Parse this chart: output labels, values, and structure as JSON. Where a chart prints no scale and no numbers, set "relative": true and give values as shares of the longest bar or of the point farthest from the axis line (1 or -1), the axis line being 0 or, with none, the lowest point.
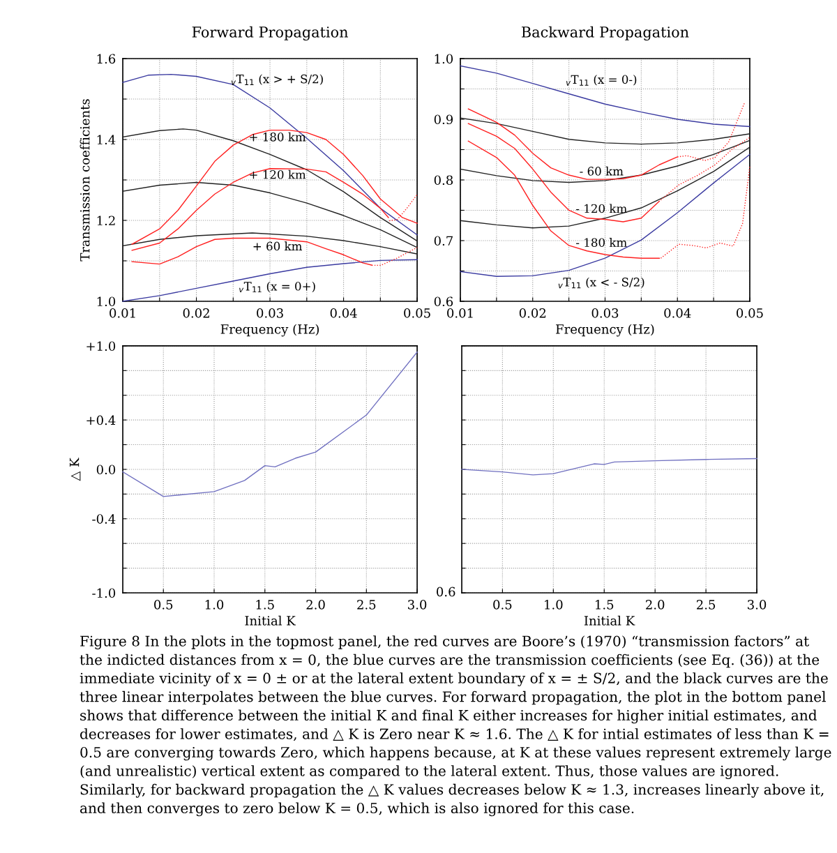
{
  "chart_data": [
    {
      "type": "line",
      "title": "Forward Propagation",
      "xlabel": "Frequency (Hz)",
      "ylabel": "Transmission coefficients",
      "xlim": [
        0.01,
        0.05
      ],
      "ylim": [
        1.0,
        1.6
      ],
      "xticks": [
        0.01,
        {
          "value": 0.015,
          "label": null
        },
        0.02,
        {
          "value": 0.025,
          "label": null
        },
        0.03,
        {
          "value": 0.035,
          "label": null
        },
        0.04,
        {
          "value": 0.045,
          "label": null
        },
        0.05
      ],
      "yticks": [
        {
          "value": 1.0,
          "label": "1.0"
        },
        {
          "value": 1.1,
          "label": null
        },
        1.2,
        {
          "value": 1.3,
          "label": null
        },
        1.4,
        {
          "value": 1.5,
          "label": null
        },
        1.6
      ],
      "grid": true,
      "line_style": "solid",
      "series": [
        {
          "color": "#3a3aa0",
          "x": [
            0.01,
            0.01345,
            0.0166,
            0.02,
            0.025,
            0.03,
            0.035,
            0.04,
            0.045,
            0.05
          ],
          "values": [
            1.541,
            1.559,
            1.561,
            1.556,
            1.536,
            1.478,
            1.403,
            1.323,
            1.23,
            1.164
          ]
        },
        {
          "color": "#222222",
          "x": [
            0.01,
            0.015,
            0.0182,
            0.02,
            0.025,
            0.03,
            0.035,
            0.04,
            0.045,
            0.05
          ],
          "values": [
            1.406,
            1.422,
            1.426,
            1.423,
            1.397,
            1.363,
            1.325,
            1.271,
            1.207,
            1.149
          ]
        },
        {
          "color": "#222222",
          "x": [
            0.01,
            0.015,
            0.02,
            0.025,
            0.03,
            0.035,
            0.04,
            0.045,
            0.05
          ],
          "values": [
            1.272,
            1.287,
            1.294,
            1.287,
            1.268,
            1.243,
            1.212,
            1.177,
            1.133
          ]
        },
        {
          "color": "#222222",
          "x": [
            0.01,
            0.015,
            0.02,
            0.0276,
            0.035,
            0.04,
            0.045,
            0.05
          ],
          "values": [
            1.137,
            1.153,
            1.162,
            1.169,
            1.161,
            1.15,
            1.135,
            1.117
          ]
        },
        {
          "color": "#3a3aa0",
          "x": [
            0.01,
            0.015,
            0.02,
            0.025,
            0.03,
            0.035,
            0.04,
            0.045,
            0.05
          ],
          "values": [
            1.0,
            1.014,
            1.032,
            1.05,
            1.068,
            1.084,
            1.093,
            1.101,
            1.103
          ]
        },
        {
          "color": "#ff2020",
          "x": [
            0.01125,
            0.015,
            0.0175,
            0.02,
            0.0225,
            0.025,
            0.0276,
            0.03,
            0.0326,
            0.035,
            0.0376,
            0.04,
            0.0426,
            0.045,
            0.048,
            0.05
          ],
          "values": [
            1.141,
            1.179,
            1.225,
            1.285,
            1.346,
            1.386,
            1.412,
            1.423,
            1.423,
            1.417,
            1.4,
            1.363,
            1.311,
            1.253,
            1.207,
            1.193
          ]
        },
        {
          "color": "#ff2020",
          "x": [
            0.01125,
            0.015,
            0.0175,
            0.02,
            0.0225,
            0.025,
            0.0276,
            0.03,
            0.035,
            0.0376,
            0.04,
            0.0426,
            0.045,
            0.0461
          ],
          "values": [
            1.126,
            1.144,
            1.179,
            1.225,
            1.265,
            1.294,
            1.317,
            1.328,
            1.327,
            1.32,
            1.294,
            1.265,
            1.23,
            1.207
          ]
        },
        {
          "color": "#ff2020",
          "line_style": "dotted",
          "x": [
            0.0462,
            0.0473,
            0.0486,
            0.05
          ],
          "values": [
            1.199,
            1.202,
            1.23,
            1.264
          ]
        },
        {
          "color": "#ff2020",
          "x": [
            0.01125,
            0.015,
            0.0175,
            0.02,
            0.0225,
            0.025,
            0.03,
            0.035,
            0.0376,
            0.04,
            0.0426,
            0.0439
          ],
          "values": [
            1.098,
            1.092,
            1.11,
            1.135,
            1.153,
            1.156,
            1.156,
            1.147,
            1.13,
            1.115,
            1.095,
            1.089
          ]
        },
        {
          "color": "#ff2020",
          "line_style": "dotted",
          "x": [
            0.0442,
            0.0451,
            0.0473,
            0.05
          ],
          "values": [
            1.089,
            1.089,
            1.107,
            1.133
          ]
        }
      ],
      "annotations": [
        "$_{v}$T$_{11}$ (x > + S/2)",
        "+ 180 km",
        "+ 120 km",
        "+ 60 km",
        "$_{v}$T$_{11}$ (x = 0+)"
      ]
    },
    {
      "type": "line",
      "title": "Backward Propagation",
      "xlabel": "Frequency (Hz)",
      "xlim": [
        0.01,
        0.05
      ],
      "ylim": [
        0.6,
        1.0
      ],
      "xticks": [
        0.01,
        {
          "value": 0.015,
          "label": null
        },
        0.02,
        {
          "value": 0.025,
          "label": null
        },
        0.03,
        {
          "value": 0.035,
          "label": null
        },
        0.04,
        {
          "value": 0.045,
          "label": null
        },
        0.05
      ],
      "yticks": [
        0.6,
        {
          "value": 0.65,
          "label": null
        },
        0.7,
        {
          "value": 0.75,
          "label": null
        },
        0.8,
        {
          "value": 0.85,
          "label": null
        },
        0.9,
        {
          "value": 0.95,
          "label": null
        },
        {
          "value": 1.0,
          "label": "1.0"
        }
      ],
      "grid": true,
      "line_style": "solid",
      "series": [
        {
          "color": "#3a3aa0",
          "x": [
            0.01,
            0.015,
            0.02,
            0.025,
            0.03,
            0.035,
            0.04,
            0.045,
            0.05
          ],
          "values": [
            0.988,
            0.976,
            0.959,
            0.942,
            0.925,
            0.912,
            0.9,
            0.892,
            0.888
          ]
        },
        {
          "color": "#222222",
          "x": [
            0.01,
            0.015,
            0.02,
            0.025,
            0.03,
            0.035,
            0.04,
            0.045,
            0.05
          ],
          "values": [
            0.902,
            0.893,
            0.88,
            0.867,
            0.861,
            0.859,
            0.861,
            0.867,
            0.876
          ]
        },
        {
          "color": "#222222",
          "x": [
            0.01,
            0.015,
            0.02,
            0.025,
            0.03,
            0.035,
            0.04,
            0.045,
            0.05
          ],
          "values": [
            0.818,
            0.807,
            0.799,
            0.796,
            0.799,
            0.808,
            0.823,
            0.842,
            0.865
          ]
        },
        {
          "color": "#222222",
          "x": [
            0.01,
            0.015,
            0.02,
            0.025,
            0.03,
            0.035,
            0.04,
            0.045,
            0.05
          ],
          "values": [
            0.733,
            0.726,
            0.721,
            0.724,
            0.737,
            0.754,
            0.782,
            0.814,
            0.854
          ]
        },
        {
          "color": "#3a3aa0",
          "x": [
            0.01,
            0.015,
            0.02,
            0.025,
            0.03,
            0.035,
            0.04,
            0.045,
            0.05
          ],
          "values": [
            0.649,
            0.641,
            0.642,
            0.651,
            0.671,
            0.701,
            0.746,
            0.795,
            0.842
          ]
        },
        {
          "color": "#ff2020",
          "x": [
            0.0111,
            0.015,
            0.0175,
            0.02,
            0.0225,
            0.025,
            0.0275,
            0.03,
            0.0325,
            0.035,
            0.0375,
            0.04
          ],
          "values": [
            0.917,
            0.895,
            0.874,
            0.844,
            0.82,
            0.808,
            0.801,
            0.801,
            0.802,
            0.808,
            0.825,
            0.838
          ]
        },
        {
          "color": "#ff2020",
          "line_style": "dotted",
          "x": [
            0.04,
            0.0413,
            0.0438,
            0.0452,
            0.0471,
            0.0493
          ],
          "values": [
            0.838,
            0.84,
            0.832,
            0.837,
            0.863,
            0.928
          ]
        },
        {
          "color": "#ff2020",
          "x": [
            0.0111,
            0.015,
            0.0175,
            0.02,
            0.0225,
            0.025,
            0.0275,
            0.03,
            0.0325,
            0.035,
            0.0375
          ],
          "values": [
            0.893,
            0.872,
            0.852,
            0.818,
            0.78,
            0.75,
            0.737,
            0.735,
            0.731,
            0.737,
            0.765
          ]
        },
        {
          "color": "#ff2020",
          "line_style": "dotted",
          "x": [
            0.0377,
            0.0402,
            0.0427,
            0.0452,
            0.0477,
            0.05
          ],
          "values": [
            0.767,
            0.792,
            0.807,
            0.825,
            0.852,
            0.87
          ]
        },
        {
          "color": "#ff2020",
          "x": [
            0.0111,
            0.015,
            0.0175,
            0.02,
            0.0225,
            0.025,
            0.0275,
            0.03,
            0.0325,
            0.035,
            0.0375
          ],
          "values": [
            0.864,
            0.837,
            0.808,
            0.758,
            0.716,
            0.692,
            0.683,
            0.677,
            0.673,
            0.671,
            0.671
          ]
        },
        {
          "color": "#ff2020",
          "line_style": "dotted",
          "x": [
            0.0377,
            0.0402,
            0.0421,
            0.044,
            0.0459,
            0.0477,
            0.049,
            0.0498,
            0.05
          ],
          "values": [
            0.671,
            0.694,
            0.692,
            0.688,
            0.696,
            0.691,
            0.728,
            0.803,
            0.823
          ]
        }
      ],
      "annotations": [
        "$_{v}$T$_{11}$ (x = 0-)",
        "- 60 km",
        "- 120 km",
        "- 180 km",
        "$_{v}$T$_{11}$ (x < - S/2)"
      ]
    },
    {
      "type": "line",
      "xlabel": "Initial K",
      "ylabel": "△ K",
      "xlim": [
        0.1,
        3.0
      ],
      "ylim": [
        -1.0,
        1.0
      ],
      "xticks": [
        0.5,
        {
          "value": 1.0,
          "label": "1.0"
        },
        1.5,
        {
          "value": 2.0,
          "label": "2.0"
        },
        2.5,
        {
          "value": 3.0,
          "label": "3.0"
        }
      ],
      "yticks": [
        {
          "value": 1.0,
          "label": "+1.0"
        },
        {
          "value": 0.8,
          "label": null
        },
        {
          "value": 0.6,
          "label": null
        },
        {
          "value": 0.4,
          "label": "+0.4"
        },
        {
          "value": 0.2,
          "label": null
        },
        {
          "value": 0.0,
          "label": "0.0"
        },
        {
          "value": -0.2,
          "label": null
        },
        {
          "value": -0.4,
          "label": "-0.4"
        },
        {
          "value": -0.6,
          "label": null
        },
        {
          "value": -0.8,
          "label": null
        },
        {
          "value": -1.0,
          "label": "-1.0"
        }
      ],
      "grid": true,
      "line_style": "solid",
      "series": [
        {
          "color": "#7070c0",
          "x": [
            0.1,
            0.5,
            1.0,
            1.3,
            1.5,
            1.6,
            1.8,
            2.0,
            2.5,
            3.0
          ],
          "values": [
            -0.02,
            -0.22,
            -0.18,
            -0.09,
            0.03,
            0.02,
            0.09,
            0.14,
            0.44,
            0.95
          ]
        }
      ]
    },
    {
      "type": "line",
      "xlabel": "Initial K",
      "relative": true,
      "xlim": [
        0.1,
        3.0
      ],
      "xticks": [
        0.5,
        {
          "value": 1.0,
          "label": "1.0"
        },
        1.5,
        {
          "value": 2.0,
          "label": "2.0"
        },
        2.5,
        {
          "value": 3.0,
          "label": "3.0"
        }
      ],
      "grid": true,
      "line_style": "solid",
      "series": [
        {
          "color": "#7070c0",
          "x": [
            0.1,
            0.5,
            0.8,
            1.0,
            1.4,
            1.5,
            1.6,
            2.0,
            2.5,
            3.0
          ],
          "values": [
            0.92,
            0.901,
            0.879,
            0.888,
            0.961,
            0.957,
            0.975,
            0.984,
            0.994,
            1.0
          ]
        }
      ],
      "annotations": [
        "0.6",
        "Figure 8 In the plots in the topmost panel, the red curves are Boore’s (1970) “transmission factors” at the indicted distances from x = 0, the blue curves are the transmission coefficients (see Eq. (36)) at the immediate vicinity of x = 0 ± or at the lateral extent boundary of x = ± S/2, and the black curves are the three linear interpolates between the blue curves. For forward propagation, the plot in the bottom panel shows that difference between the initial K and final K either increases for higher initial estimates, and decreases for lower estimates, and △ K is Zero near K ≈ 1.6. The △ K for intial estimates of less than K = 0.5 are converging towards Zero, which happens because, at K at these values represent extremely large (and unrealistic) vertical extent as compared to the lateral extent. Thus, those values are ignored. Similarly, for backward propagation the △ K values decreases below K ≈ 1.3, increases linearly above it, and then converges to zero below K = 0.5, which is also ignored for this case."
      ]
    }
  ]
}
